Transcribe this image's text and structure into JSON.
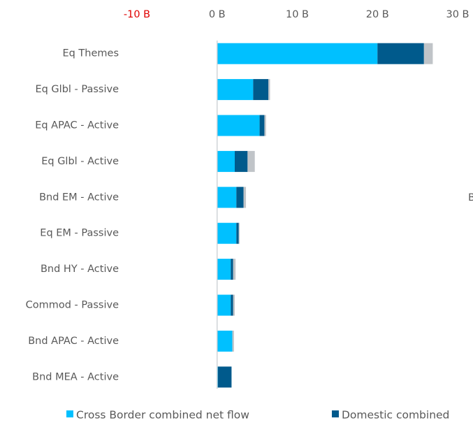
{
  "chart_data": {
    "type": "stacked_barh",
    "categories": [
      "Eq Themes",
      "Eq Glbl - Passive",
      "Eq APAC - Active",
      "Eq Glbl - Active",
      "Bnd EM - Active",
      "Eq EM - Passive",
      "Bnd HY - Active",
      "Commod - Passive",
      "Bnd APAC - Active",
      "Bnd MEA - Active"
    ],
    "series": [
      {
        "name": "Cross Border combined net flow",
        "color": "#00c0ff",
        "values": [
          20.0,
          4.5,
          5.3,
          2.2,
          2.4,
          2.4,
          1.7,
          1.7,
          1.9,
          0.1
        ]
      },
      {
        "name": "Domestic combined",
        "color": "#005a8c",
        "values": [
          5.8,
          1.9,
          0.6,
          1.6,
          0.9,
          0.3,
          0.3,
          0.3,
          0,
          1.7
        ]
      },
      {
        "color": "#c0c4c8",
        "values": [
          1.1,
          0.2,
          0.2,
          0.9,
          0.3,
          0.1,
          0.3,
          0.2,
          0.2,
          0
        ]
      }
    ],
    "xlim": [
      -10,
      30
    ],
    "xticks": [
      {
        "value": -10,
        "label": "-10 B",
        "color": "#e00000"
      },
      {
        "value": 0,
        "label": "0 B"
      },
      {
        "value": 10,
        "label": "10 B"
      },
      {
        "value": 20,
        "label": "20 B"
      },
      {
        "value": 30,
        "label": "30 B"
      }
    ],
    "annotation": "B"
  }
}
